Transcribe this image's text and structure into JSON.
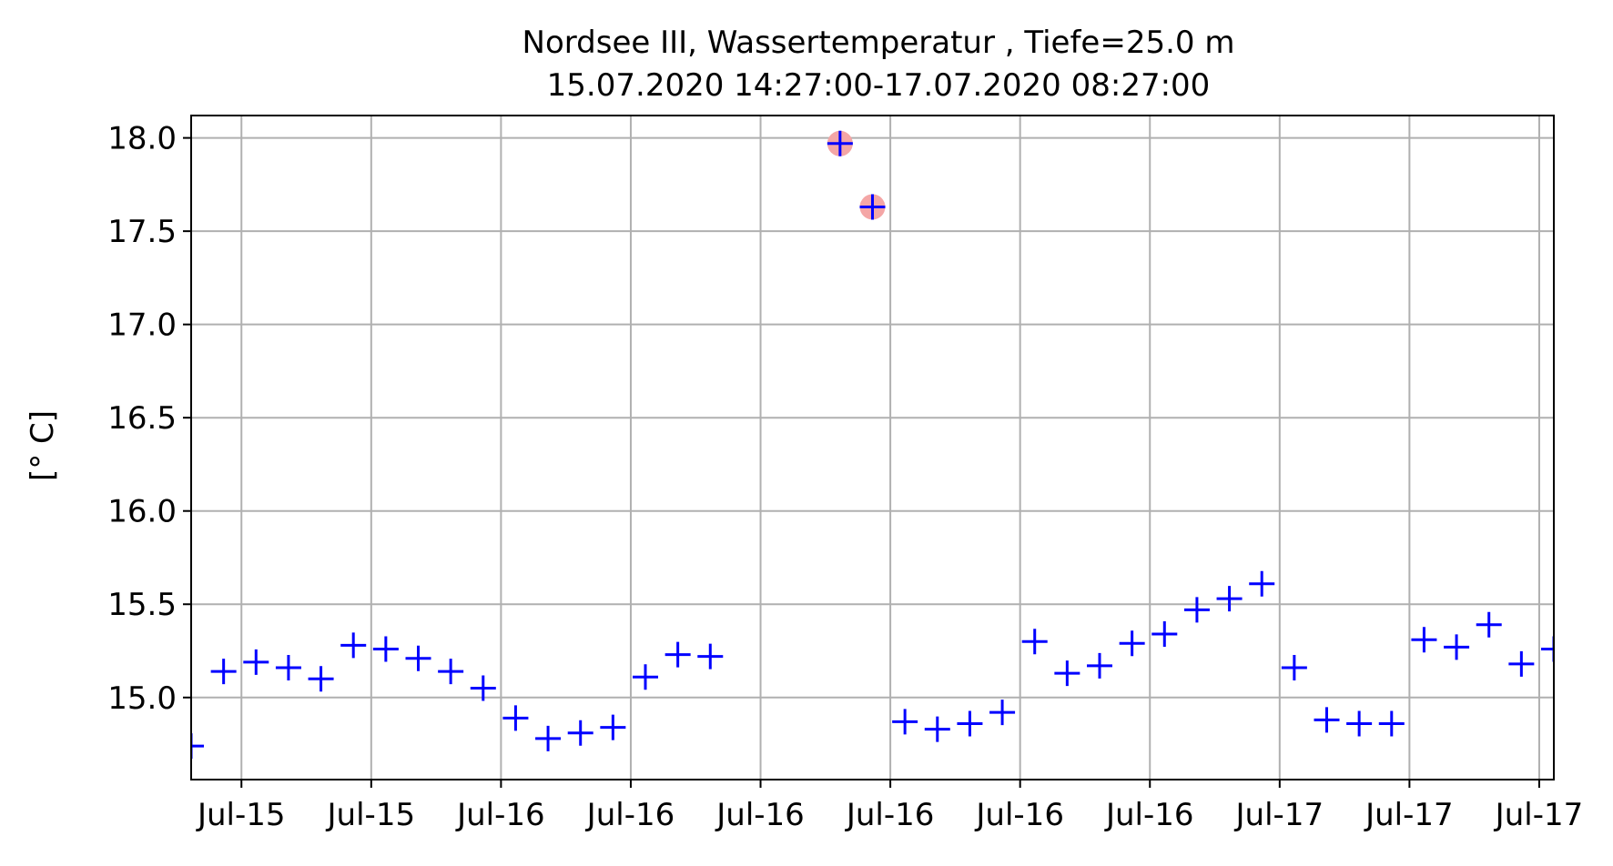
{
  "chart_data": {
    "type": "scatter",
    "title_line1": "Nordsee III, Wassertemperatur , Tiefe=25.0 m",
    "title_line2": "15.07.2020 14:27:00-17.07.2020 08:27:00",
    "xlabel": "",
    "ylabel": "[° C]",
    "x_start": "2020-07-15 14:27",
    "x_end": "2020-07-17 08:27",
    "xlim": [
      "2020-07-15 14:27",
      "2020-07-17 08:27"
    ],
    "ylim": [
      14.56,
      18.12
    ],
    "yticks": [
      15.0,
      15.5,
      16.0,
      16.5,
      17.0,
      17.5,
      18.0
    ],
    "ytick_labels": [
      "15.0",
      "15.5",
      "16.0",
      "16.5",
      "17.0",
      "17.5",
      "18.0"
    ],
    "xticks": [
      "2020-07-15 16:00",
      "2020-07-15 20:00",
      "2020-07-16 00:00",
      "2020-07-16 04:00",
      "2020-07-16 08:00",
      "2020-07-16 12:00",
      "2020-07-16 16:00",
      "2020-07-16 20:00",
      "2020-07-17 00:00",
      "2020-07-17 04:00",
      "2020-07-17 08:00"
    ],
    "xtick_labels": [
      "Jul-15",
      "Jul-15",
      "Jul-16",
      "Jul-16",
      "Jul-16",
      "Jul-16",
      "Jul-16",
      "Jul-16",
      "Jul-17",
      "Jul-17",
      "Jul-17"
    ],
    "grid": true,
    "marker": "+",
    "marker_color": "#0000ff",
    "flag_color": "#f4a6a6",
    "x": [
      "2020-07-15 14:27",
      "2020-07-15 15:27",
      "2020-07-15 16:27",
      "2020-07-15 17:27",
      "2020-07-15 18:27",
      "2020-07-15 19:27",
      "2020-07-15 20:27",
      "2020-07-15 21:27",
      "2020-07-15 22:27",
      "2020-07-15 23:27",
      "2020-07-16 00:27",
      "2020-07-16 01:27",
      "2020-07-16 02:27",
      "2020-07-16 03:27",
      "2020-07-16 04:27",
      "2020-07-16 05:27",
      "2020-07-16 06:27",
      "2020-07-16 10:27",
      "2020-07-16 11:27",
      "2020-07-16 12:27",
      "2020-07-16 13:27",
      "2020-07-16 14:27",
      "2020-07-16 15:27",
      "2020-07-16 16:27",
      "2020-07-16 17:27",
      "2020-07-16 18:27",
      "2020-07-16 19:27",
      "2020-07-16 20:27",
      "2020-07-16 21:27",
      "2020-07-16 22:27",
      "2020-07-16 23:27",
      "2020-07-17 00:27",
      "2020-07-17 01:27",
      "2020-07-17 02:27",
      "2020-07-17 03:27",
      "2020-07-17 04:27",
      "2020-07-17 05:27",
      "2020-07-17 06:27",
      "2020-07-17 07:27",
      "2020-07-17 08:27"
    ],
    "y": [
      14.74,
      15.14,
      15.19,
      15.16,
      15.1,
      15.28,
      15.26,
      15.21,
      15.14,
      15.05,
      14.89,
      14.78,
      14.81,
      14.84,
      15.11,
      15.23,
      15.22,
      17.97,
      17.63,
      14.87,
      14.83,
      14.86,
      14.92,
      15.3,
      15.13,
      15.17,
      15.29,
      15.34,
      15.47,
      15.53,
      15.61,
      15.16,
      14.88,
      14.86,
      14.86,
      15.31,
      15.27,
      15.39,
      15.18,
      15.26
    ],
    "flagged_x": [
      "2020-07-16 10:27",
      "2020-07-16 11:27"
    ],
    "flagged_y": [
      17.97,
      17.63
    ]
  }
}
